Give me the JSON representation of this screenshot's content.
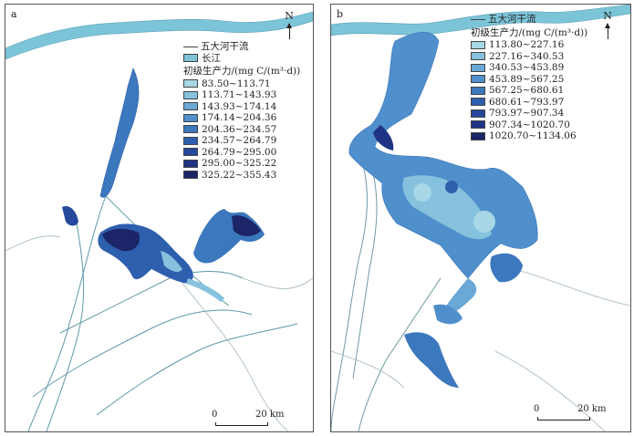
{
  "panel_a": {
    "label": "a",
    "north": "N",
    "legend": {
      "river_label": "五大河干流",
      "yangtze_label": "长江",
      "title": "初级生产力/(mg C/(m³·d))",
      "classes": [
        {
          "range": "83.50~113.71",
          "color": "#a8d7e6"
        },
        {
          "range": "113.71~143.93",
          "color": "#86c2de"
        },
        {
          "range": "143.93~174.14",
          "color": "#6aa8d6"
        },
        {
          "range": "174.14~204.36",
          "color": "#4f8fcb"
        },
        {
          "range": "204.36~234.57",
          "color": "#3c78bd"
        },
        {
          "range": "234.57~264.79",
          "color": "#2e5fae"
        },
        {
          "range": "264.79~295.00",
          "color": "#25489c"
        },
        {
          "range": "295.00~325.22",
          "color": "#1f3485"
        },
        {
          "range": "325.22~355.43",
          "color": "#1b2567"
        }
      ]
    },
    "scale": {
      "start": "0",
      "end": "20 km"
    }
  },
  "panel_b": {
    "label": "b",
    "north": "N",
    "legend": {
      "river_label": "五大河干流",
      "title": "初级生产力/(mg C/(m³·d))",
      "classes": [
        {
          "range": "113.80~227.16",
          "color": "#a8d7e6"
        },
        {
          "range": "227.16~340.53",
          "color": "#86c2de"
        },
        {
          "range": "340.53~453.89",
          "color": "#6aa8d6"
        },
        {
          "range": "453.89~567.25",
          "color": "#4f8fcb"
        },
        {
          "range": "567.25~680.61",
          "color": "#3c78bd"
        },
        {
          "range": "680.61~793.97",
          "color": "#2e5fae"
        },
        {
          "range": "793.97~907.34",
          "color": "#25489c"
        },
        {
          "range": "907.34~1020.70",
          "color": "#1f3485"
        },
        {
          "range": "1020.70~1134.06",
          "color": "#1b2567"
        }
      ]
    },
    "scale": {
      "start": "0",
      "end": "20 km"
    }
  }
}
